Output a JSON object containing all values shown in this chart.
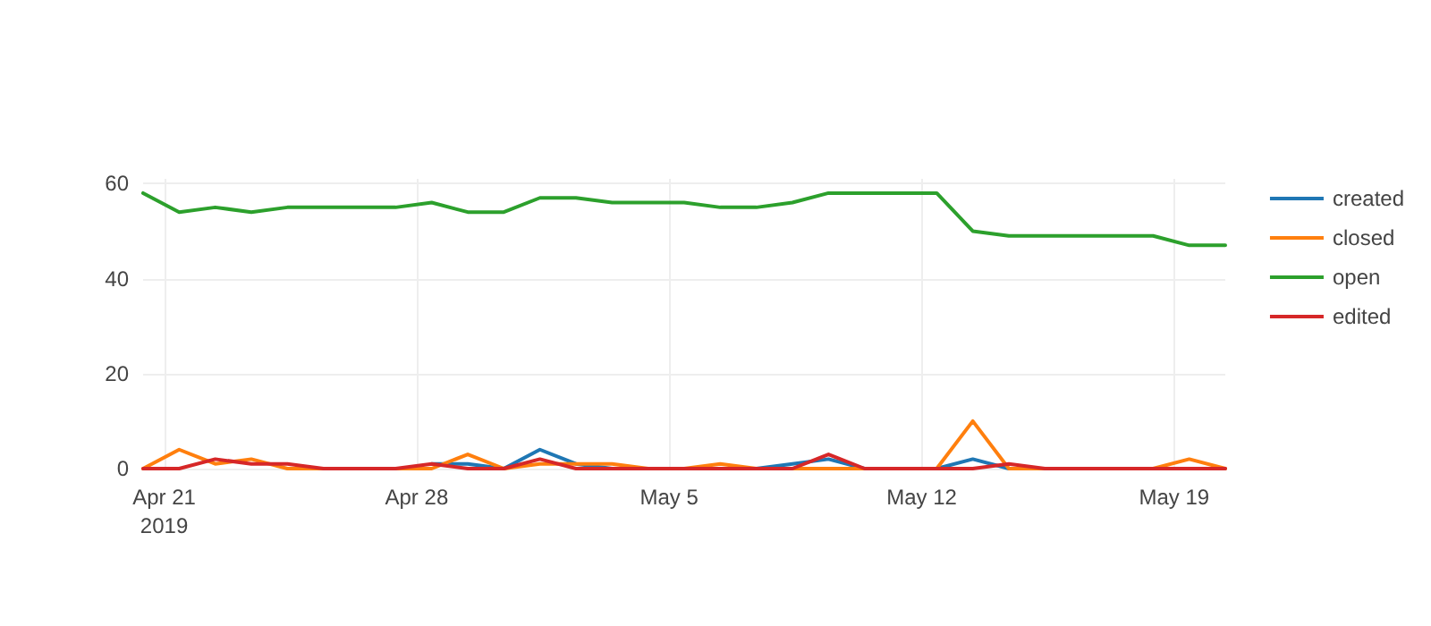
{
  "chart_data": {
    "type": "line",
    "x": [
      "2019-04-20T10:00",
      "2019-04-21T10:00",
      "2019-04-22T10:00",
      "2019-04-23T10:00",
      "2019-04-24T10:00",
      "2019-04-25T10:00",
      "2019-04-26T10:00",
      "2019-04-27T10:00",
      "2019-04-28T10:00",
      "2019-04-29T10:00",
      "2019-04-30T10:00",
      "2019-05-01T10:00",
      "2019-05-02T10:00",
      "2019-05-03T10:00",
      "2019-05-04T10:00",
      "2019-05-05T10:00",
      "2019-05-06T10:00",
      "2019-05-07T10:00",
      "2019-05-08T10:00",
      "2019-05-09T10:00",
      "2019-05-10T10:00",
      "2019-05-11T10:00",
      "2019-05-12T10:00",
      "2019-05-13T10:00",
      "2019-05-14T10:00",
      "2019-05-15T10:00",
      "2019-05-16T10:00",
      "2019-05-17T10:00",
      "2019-05-18T10:00",
      "2019-05-19T10:00",
      "2019-05-20T10:00"
    ],
    "series": [
      {
        "name": "created",
        "color": "#1f77b4",
        "values": [
          null,
          null,
          null,
          null,
          null,
          null,
          null,
          null,
          1,
          1,
          0,
          4,
          1,
          0,
          null,
          null,
          null,
          0,
          1,
          2,
          0,
          null,
          0,
          2,
          0,
          null,
          null,
          null,
          null,
          null,
          null
        ]
      },
      {
        "name": "closed",
        "color": "#ff7f0e",
        "values": [
          0,
          4,
          1,
          2,
          0,
          0,
          0,
          0,
          0,
          3,
          0,
          1,
          1,
          1,
          0,
          0,
          1,
          0,
          0,
          0,
          0,
          0,
          0,
          10,
          0,
          0,
          0,
          0,
          0,
          2,
          0
        ]
      },
      {
        "name": "open",
        "color": "#2ca02c",
        "values": [
          58,
          54,
          55,
          54,
          55,
          55,
          55,
          55,
          56,
          54,
          54,
          57,
          57,
          56,
          56,
          56,
          55,
          55,
          56,
          58,
          58,
          58,
          58,
          50,
          49,
          49,
          49,
          49,
          49,
          47,
          47
        ]
      },
      {
        "name": "edited",
        "color": "#d62728",
        "values": [
          0,
          0,
          2,
          1,
          1,
          0,
          0,
          0,
          1,
          0,
          0,
          2,
          0,
          0,
          0,
          0,
          0,
          0,
          0,
          3,
          0,
          0,
          0,
          0,
          1,
          0,
          0,
          0,
          0,
          0,
          0
        ]
      }
    ],
    "xlim": [
      "2019-04-20T10:00",
      "2019-05-20T10:00"
    ],
    "xticks": [
      {
        "value": "2019-04-21",
        "label": "Apr 21\n2019"
      },
      {
        "value": "2019-04-28",
        "label": "Apr 28"
      },
      {
        "value": "2019-05-05",
        "label": "May 5"
      },
      {
        "value": "2019-05-12",
        "label": "May 12"
      },
      {
        "value": "2019-05-19",
        "label": "May 19"
      }
    ],
    "ylim": [
      0,
      61
    ],
    "yticks": [
      0,
      20,
      40,
      60
    ],
    "grid": true,
    "legend": "top right",
    "marker": "none",
    "line_style": "solid"
  }
}
